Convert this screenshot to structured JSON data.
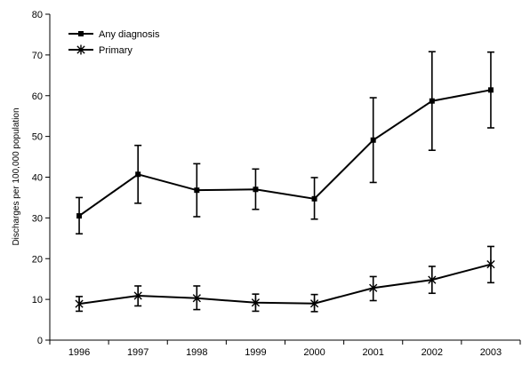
{
  "chart_data": {
    "type": "line",
    "title": "",
    "xlabel": "",
    "ylabel": "Discharges per 100,000 population",
    "x": [
      "1996",
      "1997",
      "1998",
      "1999",
      "2000",
      "2001",
      "2002",
      "2003"
    ],
    "ylim": [
      0,
      80
    ],
    "yticks": [
      0,
      10,
      20,
      30,
      40,
      50,
      60,
      70,
      80
    ],
    "grid": false,
    "legend_position": "top-left",
    "series": [
      {
        "name": "Any diagnosis",
        "marker": "square",
        "color": "#000000",
        "values": [
          30.5,
          40.7,
          36.8,
          37.0,
          34.7,
          49.1,
          58.7,
          61.4
        ],
        "error_low": [
          26.1,
          33.6,
          30.3,
          32.1,
          29.7,
          38.7,
          46.6,
          52.1
        ],
        "error_high": [
          35.0,
          47.8,
          43.3,
          42.0,
          39.9,
          59.5,
          70.8,
          70.7
        ]
      },
      {
        "name": "Primary",
        "marker": "star",
        "color": "#000000",
        "values": [
          8.9,
          10.9,
          10.3,
          9.2,
          9.0,
          12.8,
          14.8,
          18.6
        ],
        "error_low": [
          7.1,
          8.4,
          7.5,
          7.1,
          7.0,
          9.7,
          11.5,
          14.1
        ],
        "error_high": [
          10.7,
          13.3,
          13.3,
          11.3,
          11.2,
          15.6,
          18.1,
          23.0
        ]
      }
    ]
  }
}
